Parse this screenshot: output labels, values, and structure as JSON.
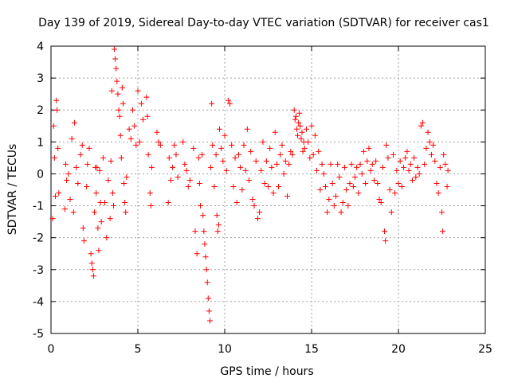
{
  "chart_data": {
    "type": "scatter",
    "title": "Day 139 of 2019, Sidereal Day-to-day VTEC variation (SDTVAR) for receiver cas1",
    "xlabel": "GPS time / hours",
    "ylabel": "SDTVAR / TECUs",
    "xlim": [
      0,
      25
    ],
    "ylim": [
      -5,
      4
    ],
    "xticks": [
      0,
      5,
      10,
      15,
      20,
      25
    ],
    "yticks": [
      -5,
      -4,
      -3,
      -2,
      -1,
      0,
      1,
      2,
      3,
      4
    ],
    "xtick_labels": [
      "0",
      "5",
      "10",
      "15",
      "20",
      "25"
    ],
    "ytick_labels": [
      "-5",
      "-4",
      "-3",
      "-2",
      "-1",
      "0",
      "1",
      "2",
      "3",
      "4"
    ],
    "grid": true,
    "marker": "+",
    "color": "#ff0000",
    "series": [
      {
        "name": "cas1",
        "points": [
          [
            0.1,
            -1.4
          ],
          [
            0.15,
            1.5
          ],
          [
            0.2,
            0.5
          ],
          [
            0.25,
            -0.7
          ],
          [
            0.3,
            2.3
          ],
          [
            0.35,
            2.0
          ],
          [
            0.4,
            0.8
          ],
          [
            0.45,
            -0.6
          ],
          [
            0.8,
            -1.1
          ],
          [
            0.85,
            0.3
          ],
          [
            0.9,
            -0.2
          ],
          [
            1.0,
            0.0
          ],
          [
            1.1,
            -0.8
          ],
          [
            1.2,
            1.1
          ],
          [
            1.3,
            -1.2
          ],
          [
            1.35,
            1.6
          ],
          [
            1.45,
            0.2
          ],
          [
            1.55,
            -0.3
          ],
          [
            1.7,
            0.6
          ],
          [
            1.8,
            0.9
          ],
          [
            1.85,
            -1.7
          ],
          [
            1.9,
            -2.1
          ],
          [
            2.05,
            -0.4
          ],
          [
            2.1,
            0.3
          ],
          [
            2.2,
            0.8
          ],
          [
            2.3,
            -2.5
          ],
          [
            2.35,
            -2.8
          ],
          [
            2.4,
            -3.0
          ],
          [
            2.45,
            -3.2
          ],
          [
            2.5,
            -1.2
          ],
          [
            2.55,
            0.2
          ],
          [
            2.6,
            -0.6
          ],
          [
            2.65,
            0.2
          ],
          [
            2.7,
            -1.7
          ],
          [
            2.75,
            -2.4
          ],
          [
            2.8,
            0.1
          ],
          [
            2.85,
            -0.9
          ],
          [
            2.9,
            -1.5
          ],
          [
            3.0,
            0.5
          ],
          [
            3.1,
            -0.9
          ],
          [
            3.2,
            -2.0
          ],
          [
            3.3,
            -0.2
          ],
          [
            3.4,
            -1.4
          ],
          [
            3.45,
            0.4
          ],
          [
            3.5,
            2.6
          ],
          [
            3.55,
            -0.6
          ],
          [
            3.6,
            -1.0
          ],
          [
            3.65,
            3.9
          ],
          [
            3.7,
            3.6
          ],
          [
            3.75,
            3.3
          ],
          [
            3.8,
            2.9
          ],
          [
            3.85,
            2.5
          ],
          [
            3.9,
            2.0
          ],
          [
            3.95,
            1.8
          ],
          [
            4.0,
            1.2
          ],
          [
            4.05,
            0.5
          ],
          [
            4.1,
            2.7
          ],
          [
            4.15,
            2.2
          ],
          [
            4.2,
            -0.3
          ],
          [
            4.25,
            -0.9
          ],
          [
            4.3,
            -1.2
          ],
          [
            4.35,
            -0.1
          ],
          [
            4.5,
            1.4
          ],
          [
            4.6,
            1.1
          ],
          [
            4.7,
            2.0
          ],
          [
            4.8,
            1.5
          ],
          [
            4.9,
            0.9
          ],
          [
            5.0,
            2.6
          ],
          [
            5.1,
            1.0
          ],
          [
            5.2,
            2.2
          ],
          [
            5.3,
            1.7
          ],
          [
            5.5,
            2.4
          ],
          [
            5.55,
            1.8
          ],
          [
            5.6,
            0.6
          ],
          [
            5.7,
            -0.6
          ],
          [
            5.75,
            -1.0
          ],
          [
            5.8,
            0.2
          ],
          [
            6.1,
            1.3
          ],
          [
            6.2,
            1.0
          ],
          [
            6.3,
            0.9
          ],
          [
            6.75,
            -0.9
          ],
          [
            6.8,
            0.5
          ],
          [
            6.9,
            -0.2
          ],
          [
            7.0,
            0.2
          ],
          [
            7.1,
            0.9
          ],
          [
            7.2,
            0.6
          ],
          [
            7.3,
            -0.1
          ],
          [
            7.6,
            1.0
          ],
          [
            7.7,
            0.3
          ],
          [
            7.8,
            0.1
          ],
          [
            7.9,
            -0.4
          ],
          [
            8.0,
            -0.2
          ],
          [
            8.2,
            0.8
          ],
          [
            8.3,
            -1.8
          ],
          [
            8.4,
            -2.5
          ],
          [
            8.5,
            0.5
          ],
          [
            8.55,
            -0.3
          ],
          [
            8.6,
            -1.0
          ],
          [
            8.7,
            0.6
          ],
          [
            8.75,
            -1.3
          ],
          [
            8.8,
            -1.8
          ],
          [
            8.85,
            -2.2
          ],
          [
            8.9,
            -2.6
          ],
          [
            8.95,
            -3.0
          ],
          [
            9.0,
            -3.4
          ],
          [
            9.05,
            -3.9
          ],
          [
            9.1,
            -4.3
          ],
          [
            9.15,
            -4.6
          ],
          [
            9.2,
            0.2
          ],
          [
            9.25,
            2.2
          ],
          [
            9.3,
            0.9
          ],
          [
            9.4,
            -0.4
          ],
          [
            9.5,
            0.6
          ],
          [
            9.55,
            -1.3
          ],
          [
            9.6,
            -1.8
          ],
          [
            9.65,
            -1.6
          ],
          [
            9.7,
            1.4
          ],
          [
            9.8,
            0.8
          ],
          [
            9.9,
            0.4
          ],
          [
            10.0,
            1.2
          ],
          [
            10.1,
            0.1
          ],
          [
            10.2,
            2.3
          ],
          [
            10.3,
            2.2
          ],
          [
            10.4,
            0.9
          ],
          [
            10.5,
            -0.4
          ],
          [
            10.6,
            0.5
          ],
          [
            10.7,
            -0.9
          ],
          [
            10.8,
            0.6
          ],
          [
            10.9,
            0.2
          ],
          [
            11.0,
            -0.5
          ],
          [
            11.1,
            0.9
          ],
          [
            11.2,
            0.1
          ],
          [
            11.3,
            1.4
          ],
          [
            11.4,
            -0.2
          ],
          [
            11.5,
            0.7
          ],
          [
            11.6,
            -0.8
          ],
          [
            11.7,
            -1.0
          ],
          [
            11.8,
            0.4
          ],
          [
            11.9,
            -1.4
          ],
          [
            12.0,
            -1.2
          ],
          [
            12.1,
            0.1
          ],
          [
            12.2,
            1.0
          ],
          [
            12.3,
            -0.3
          ],
          [
            12.4,
            0.4
          ],
          [
            12.5,
            -0.4
          ],
          [
            12.6,
            0.8
          ],
          [
            12.7,
            0.2
          ],
          [
            12.8,
            -0.6
          ],
          [
            12.9,
            1.3
          ],
          [
            13.0,
            0.3
          ],
          [
            13.1,
            -0.4
          ],
          [
            13.2,
            0.6
          ],
          [
            13.3,
            0.9
          ],
          [
            13.4,
            0.0
          ],
          [
            13.5,
            0.4
          ],
          [
            13.6,
            -0.7
          ],
          [
            13.7,
            0.3
          ],
          [
            13.8,
            0.7
          ],
          [
            13.9,
            0.6
          ],
          [
            14.0,
            2.0
          ],
          [
            14.05,
            1.7
          ],
          [
            14.1,
            1.8
          ],
          [
            14.15,
            1.4
          ],
          [
            14.2,
            1.2
          ],
          [
            14.25,
            1.6
          ],
          [
            14.3,
            1.9
          ],
          [
            14.35,
            1.5
          ],
          [
            14.4,
            1.1
          ],
          [
            14.45,
            1.3
          ],
          [
            14.5,
            0.7
          ],
          [
            14.55,
            1.0
          ],
          [
            14.6,
            0.8
          ],
          [
            14.7,
            1.4
          ],
          [
            14.8,
            1.0
          ],
          [
            14.9,
            0.5
          ],
          [
            15.0,
            1.5
          ],
          [
            15.1,
            0.6
          ],
          [
            15.2,
            1.2
          ],
          [
            15.3,
            0.1
          ],
          [
            15.4,
            0.7
          ],
          [
            15.5,
            -0.5
          ],
          [
            15.6,
            0.3
          ],
          [
            15.7,
            0.0
          ],
          [
            15.8,
            -0.4
          ],
          [
            15.9,
            -1.2
          ],
          [
            16.0,
            -0.8
          ],
          [
            16.1,
            0.3
          ],
          [
            16.2,
            -0.3
          ],
          [
            16.3,
            -1.0
          ],
          [
            16.4,
            -0.7
          ],
          [
            16.5,
            0.3
          ],
          [
            16.6,
            -0.1
          ],
          [
            16.7,
            -1.2
          ],
          [
            16.8,
            -0.9
          ],
          [
            16.9,
            0.2
          ],
          [
            17.0,
            -0.5
          ],
          [
            17.1,
            -1.0
          ],
          [
            17.2,
            -0.3
          ],
          [
            17.3,
            0.3
          ],
          [
            17.4,
            -0.4
          ],
          [
            17.5,
            -0.1
          ],
          [
            17.6,
            0.2
          ],
          [
            17.7,
            -0.6
          ],
          [
            17.8,
            0.3
          ],
          [
            17.9,
            0.0
          ],
          [
            18.0,
            0.7
          ],
          [
            18.1,
            -0.3
          ],
          [
            18.2,
            0.4
          ],
          [
            18.3,
            0.8
          ],
          [
            18.4,
            0.1
          ],
          [
            18.5,
            0.3
          ],
          [
            18.6,
            -0.2
          ],
          [
            18.7,
            0.4
          ],
          [
            18.8,
            -0.3
          ],
          [
            18.9,
            -0.8
          ],
          [
            19.0,
            -0.9
          ],
          [
            19.1,
            0.2
          ],
          [
            19.2,
            -1.8
          ],
          [
            19.25,
            -2.1
          ],
          [
            19.3,
            0.9
          ],
          [
            19.4,
            0.5
          ],
          [
            19.5,
            -0.5
          ],
          [
            19.6,
            -1.2
          ],
          [
            19.7,
            0.6
          ],
          [
            19.8,
            -0.6
          ],
          [
            19.9,
            0.1
          ],
          [
            20.0,
            -0.3
          ],
          [
            20.1,
            0.4
          ],
          [
            20.2,
            -0.4
          ],
          [
            20.3,
            0.2
          ],
          [
            20.4,
            0.5
          ],
          [
            20.5,
            0.7
          ],
          [
            20.6,
            0.1
          ],
          [
            20.7,
            0.3
          ],
          [
            20.8,
            -0.2
          ],
          [
            20.9,
            0.5
          ],
          [
            21.0,
            -0.1
          ],
          [
            21.1,
            0.2
          ],
          [
            21.2,
            0.0
          ],
          [
            21.3,
            1.5
          ],
          [
            21.4,
            1.6
          ],
          [
            21.5,
            0.3
          ],
          [
            21.6,
            0.8
          ],
          [
            21.7,
            1.3
          ],
          [
            21.8,
            1.0
          ],
          [
            21.9,
            0.6
          ],
          [
            22.0,
            0.9
          ],
          [
            22.1,
            0.4
          ],
          [
            22.2,
            -0.3
          ],
          [
            22.3,
            -0.6
          ],
          [
            22.4,
            0.2
          ],
          [
            22.5,
            -1.2
          ],
          [
            22.55,
            -1.8
          ],
          [
            22.6,
            0.6
          ],
          [
            22.7,
            0.3
          ],
          [
            22.8,
            -0.4
          ],
          [
            22.85,
            0.1
          ]
        ]
      }
    ]
  }
}
